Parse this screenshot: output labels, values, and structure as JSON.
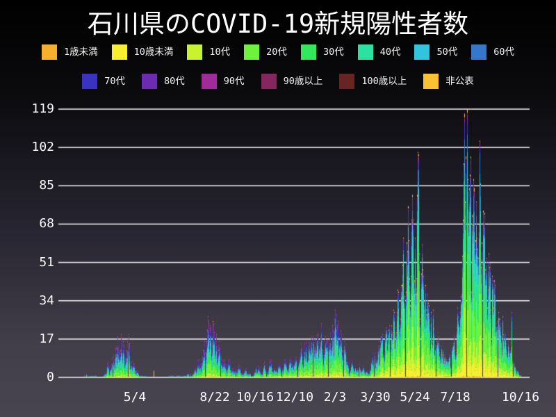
{
  "title": "石川県のCOVID-19新規陽性者数",
  "legend": {
    "row_split": [
      8,
      6
    ]
  },
  "chart_data": {
    "type": "bar",
    "stacked": true,
    "orientation": "vertical",
    "title": "石川県のCOVID-19新規陽性者数",
    "xlabel": "",
    "ylabel": "",
    "grid": true,
    "legend_position": "top",
    "ylim": [
      0,
      119
    ],
    "y_ticks": [
      0,
      17,
      34,
      51,
      68,
      85,
      102,
      119
    ],
    "x_ticks": [
      {
        "label": "5/4",
        "day": 105
      },
      {
        "label": "8/22",
        "day": 215
      },
      {
        "label": "10/16",
        "day": 270
      },
      {
        "label": "12/10",
        "day": 325
      },
      {
        "label": "2/3",
        "day": 380
      },
      {
        "label": "3/30",
        "day": 435
      },
      {
        "label": "5/24",
        "day": 490
      },
      {
        "label": "7/18",
        "day": 545
      },
      {
        "label": "10/16",
        "day": 635
      }
    ],
    "days_total": 635,
    "series": [
      {
        "name": "1歳未満",
        "color": "#f5b02d"
      },
      {
        "name": "10歳未満",
        "color": "#f7ee2f"
      },
      {
        "name": "10代",
        "color": "#c8f32e"
      },
      {
        "name": "20代",
        "color": "#6ef23b"
      },
      {
        "name": "30代",
        "color": "#32e75c"
      },
      {
        "name": "40代",
        "color": "#2ce2a2"
      },
      {
        "name": "50代",
        "color": "#32c3dd"
      },
      {
        "name": "60代",
        "color": "#3478cb"
      },
      {
        "name": "70代",
        "color": "#3a33c2"
      },
      {
        "name": "80代",
        "color": "#6c2bb1"
      },
      {
        "name": "90代",
        "color": "#a02b9a"
      },
      {
        "name": "90歳以上",
        "color": "#85265f"
      },
      {
        "name": "100歳以上",
        "color": "#682423"
      },
      {
        "name": "非公表",
        "color": "#f9c233"
      }
    ],
    "daily_total_envelope": [
      [
        0,
        0
      ],
      [
        33,
        0
      ],
      [
        35,
        1
      ],
      [
        36,
        0
      ],
      [
        38,
        2
      ],
      [
        39,
        1
      ],
      [
        40,
        0
      ],
      [
        43,
        1
      ],
      [
        44,
        0
      ],
      [
        52,
        1
      ],
      [
        53,
        0
      ],
      [
        60,
        0
      ],
      [
        63,
        2
      ],
      [
        66,
        3
      ],
      [
        69,
        6
      ],
      [
        72,
        5
      ],
      [
        75,
        9
      ],
      [
        78,
        13
      ],
      [
        80,
        10
      ],
      [
        82,
        15
      ],
      [
        84,
        12
      ],
      [
        86,
        18
      ],
      [
        88,
        11
      ],
      [
        90,
        14
      ],
      [
        92,
        9
      ],
      [
        94,
        12
      ],
      [
        97,
        16
      ],
      [
        99,
        7
      ],
      [
        101,
        5
      ],
      [
        104,
        6
      ],
      [
        107,
        3
      ],
      [
        110,
        2
      ],
      [
        114,
        1
      ],
      [
        118,
        1
      ],
      [
        122,
        0
      ],
      [
        130,
        0
      ],
      [
        132,
        0
      ],
      [
        150,
        0
      ],
      [
        158,
        1
      ],
      [
        160,
        0
      ],
      [
        166,
        1
      ],
      [
        169,
        0
      ],
      [
        174,
        1
      ],
      [
        178,
        2
      ],
      [
        181,
        1
      ],
      [
        185,
        2
      ],
      [
        188,
        4
      ],
      [
        191,
        7
      ],
      [
        194,
        5
      ],
      [
        197,
        9
      ],
      [
        200,
        13
      ],
      [
        203,
        18
      ],
      [
        205,
        25
      ],
      [
        207,
        15
      ],
      [
        209,
        21
      ],
      [
        211,
        16
      ],
      [
        213,
        23
      ],
      [
        215,
        13
      ],
      [
        217,
        19
      ],
      [
        219,
        11
      ],
      [
        221,
        15
      ],
      [
        224,
        9
      ],
      [
        227,
        7
      ],
      [
        230,
        5
      ],
      [
        234,
        7
      ],
      [
        238,
        4
      ],
      [
        242,
        3
      ],
      [
        246,
        5
      ],
      [
        250,
        3
      ],
      [
        254,
        2
      ],
      [
        258,
        4
      ],
      [
        262,
        2
      ],
      [
        266,
        1
      ],
      [
        270,
        3
      ],
      [
        274,
        5
      ],
      [
        278,
        2
      ],
      [
        282,
        6
      ],
      [
        286,
        3
      ],
      [
        290,
        8
      ],
      [
        294,
        4
      ],
      [
        298,
        3
      ],
      [
        302,
        6
      ],
      [
        306,
        3
      ],
      [
        310,
        7
      ],
      [
        314,
        4
      ],
      [
        318,
        8
      ],
      [
        322,
        6
      ],
      [
        326,
        9
      ],
      [
        329,
        6
      ],
      [
        332,
        12
      ],
      [
        335,
        8
      ],
      [
        338,
        14
      ],
      [
        341,
        10
      ],
      [
        344,
        16
      ],
      [
        347,
        11
      ],
      [
        350,
        18
      ],
      [
        353,
        12
      ],
      [
        356,
        20
      ],
      [
        359,
        14
      ],
      [
        362,
        17
      ],
      [
        365,
        11
      ],
      [
        368,
        15
      ],
      [
        371,
        19
      ],
      [
        374,
        13
      ],
      [
        377,
        23
      ],
      [
        380,
        28
      ],
      [
        382,
        20
      ],
      [
        384,
        26
      ],
      [
        386,
        17
      ],
      [
        388,
        22
      ],
      [
        390,
        13
      ],
      [
        392,
        17
      ],
      [
        395,
        9
      ],
      [
        398,
        6
      ],
      [
        401,
        4
      ],
      [
        404,
        7
      ],
      [
        407,
        4
      ],
      [
        410,
        3
      ],
      [
        413,
        6
      ],
      [
        416,
        3
      ],
      [
        419,
        5
      ],
      [
        422,
        3
      ],
      [
        425,
        2
      ],
      [
        428,
        4
      ],
      [
        431,
        7
      ],
      [
        434,
        11
      ],
      [
        437,
        8
      ],
      [
        440,
        13
      ],
      [
        443,
        17
      ],
      [
        446,
        11
      ],
      [
        449,
        19
      ],
      [
        452,
        14
      ],
      [
        455,
        24
      ],
      [
        458,
        17
      ],
      [
        461,
        30
      ],
      [
        464,
        22
      ],
      [
        467,
        38
      ],
      [
        470,
        28
      ],
      [
        473,
        48
      ],
      [
        476,
        36
      ],
      [
        479,
        58
      ],
      [
        482,
        44
      ],
      [
        485,
        70
      ],
      [
        488,
        52
      ],
      [
        490,
        62
      ],
      [
        492,
        48
      ],
      [
        494,
        100
      ],
      [
        496,
        58
      ],
      [
        498,
        45
      ],
      [
        500,
        52
      ],
      [
        502,
        38
      ],
      [
        504,
        45
      ],
      [
        506,
        28
      ],
      [
        508,
        34
      ],
      [
        510,
        22
      ],
      [
        512,
        27
      ],
      [
        514,
        18
      ],
      [
        516,
        22
      ],
      [
        518,
        14
      ],
      [
        520,
        17
      ],
      [
        523,
        10
      ],
      [
        526,
        13
      ],
      [
        529,
        8
      ],
      [
        532,
        10
      ],
      [
        535,
        7
      ],
      [
        538,
        10
      ],
      [
        541,
        15
      ],
      [
        544,
        11
      ],
      [
        547,
        20
      ],
      [
        549,
        28
      ],
      [
        551,
        22
      ],
      [
        553,
        38
      ],
      [
        555,
        52
      ],
      [
        556,
        70
      ],
      [
        557,
        95
      ],
      [
        558,
        117
      ],
      [
        559,
        78
      ],
      [
        560,
        98
      ],
      [
        561,
        119
      ],
      [
        562,
        88
      ],
      [
        563,
        68
      ],
      [
        564,
        84
      ],
      [
        566,
        98
      ],
      [
        568,
        72
      ],
      [
        570,
        88
      ],
      [
        572,
        58
      ],
      [
        574,
        78
      ],
      [
        576,
        52
      ],
      [
        578,
        68
      ],
      [
        580,
        86
      ],
      [
        582,
        60
      ],
      [
        584,
        68
      ],
      [
        586,
        46
      ],
      [
        588,
        56
      ],
      [
        590,
        38
      ],
      [
        592,
        50
      ],
      [
        594,
        33
      ],
      [
        596,
        43
      ],
      [
        598,
        28
      ],
      [
        600,
        40
      ],
      [
        602,
        24
      ],
      [
        604,
        32
      ],
      [
        606,
        27
      ],
      [
        608,
        19
      ],
      [
        610,
        25
      ],
      [
        612,
        15
      ],
      [
        614,
        21
      ],
      [
        616,
        11
      ],
      [
        618,
        17
      ],
      [
        620,
        9
      ],
      [
        622,
        13
      ],
      [
        623,
        29
      ],
      [
        624,
        8
      ],
      [
        626,
        5
      ],
      [
        628,
        4
      ],
      [
        630,
        3
      ],
      [
        632,
        2
      ],
      [
        634,
        1
      ],
      [
        635,
        1
      ]
    ],
    "special_days": [
      {
        "day": 131,
        "total": 3,
        "series": "非公表"
      }
    ],
    "age_profiles": [
      {
        "until_day": 295,
        "fractions": [
          0.002,
          0.025,
          0.045,
          0.16,
          0.13,
          0.13,
          0.13,
          0.12,
          0.1,
          0.08,
          0.045,
          0.02,
          0.003,
          0.01
        ]
      },
      {
        "until_day": 440,
        "fractions": [
          0.003,
          0.04,
          0.07,
          0.19,
          0.15,
          0.14,
          0.12,
          0.1,
          0.08,
          0.055,
          0.03,
          0.015,
          0.002,
          0.005
        ]
      },
      {
        "until_day": 636,
        "fractions": [
          0.004,
          0.075,
          0.115,
          0.235,
          0.17,
          0.15,
          0.11,
          0.06,
          0.035,
          0.02,
          0.01,
          0.004,
          0.002,
          0.01
        ]
      }
    ],
    "weekday_factors": [
      0.55,
      0.85,
      1.05,
      1.15,
      1.2,
      1.15,
      0.8
    ]
  },
  "colors": {
    "grid": "#f8f8f8",
    "text": "#f5f5f5",
    "background_top": "#000000",
    "background_bottom": "#484450"
  }
}
